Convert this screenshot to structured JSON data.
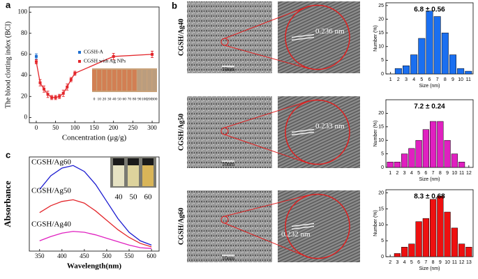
{
  "chart_data": [
    {
      "type": "line",
      "panel_label": "a",
      "ylabel": "The blood clotting index (BCI)",
      "xlabel": "Concentration (μg/g)",
      "xlim": [
        -18,
        318
      ],
      "xticks": [
        0,
        50,
        100,
        150,
        200,
        250,
        300
      ],
      "ylim": [
        -5,
        105
      ],
      "yticks": [
        0,
        20,
        40,
        60,
        80,
        100
      ],
      "legend": "center-right",
      "series": [
        {
          "name": "CGSH-A",
          "color": "#1f6fd0",
          "x": [
            0
          ],
          "values": [
            58
          ],
          "errors": [
            2.5
          ]
        },
        {
          "name": "CGSH with Ag NPs",
          "color": "#e3262b",
          "x": [
            0,
            10,
            20,
            30,
            40,
            50,
            60,
            70,
            80,
            90,
            100,
            200,
            300
          ],
          "values": [
            53,
            33,
            27,
            22,
            19,
            19,
            20,
            23,
            29,
            36,
            42,
            58,
            60
          ],
          "errors": [
            2,
            3,
            3,
            3,
            2,
            2,
            2,
            3,
            3,
            2,
            2,
            3,
            3
          ]
        }
      ],
      "inset_labels": [
        "0",
        "10",
        "20",
        "30",
        "40",
        "50",
        "60",
        "70",
        "80",
        "90",
        "100",
        "200",
        "300"
      ]
    },
    {
      "type": "line",
      "panel_label": "c",
      "ylabel": "Absorbance",
      "xlabel": "Wavelength(nm)",
      "xlim": [
        327,
        617
      ],
      "xticks": [
        350,
        400,
        450,
        500,
        550,
        600
      ],
      "ylim": [
        0,
        1.1
      ],
      "x": [
        350,
        375,
        400,
        425,
        450,
        475,
        500,
        525,
        550,
        575,
        600
      ],
      "series": [
        {
          "name": "CGSH/Ag60",
          "color": "#1a1ad0",
          "values": [
            0.72,
            0.88,
            0.97,
            1.0,
            0.93,
            0.78,
            0.58,
            0.38,
            0.22,
            0.12,
            0.07
          ]
        },
        {
          "name": "CGSH/Ag50",
          "color": "#e3262b",
          "values": [
            0.45,
            0.53,
            0.58,
            0.6,
            0.56,
            0.47,
            0.36,
            0.25,
            0.16,
            0.09,
            0.05
          ]
        },
        {
          "name": "CGSH/Ag40",
          "color": "#e020c0",
          "values": [
            0.12,
            0.17,
            0.21,
            0.23,
            0.22,
            0.19,
            0.15,
            0.11,
            0.07,
            0.04,
            0.03
          ]
        }
      ],
      "inset_labels": [
        "40",
        "50",
        "60"
      ]
    },
    {
      "type": "bar",
      "annotation": "6.8 ± 0.56",
      "xlabel": "Size (nm)",
      "ylabel": "Number (%)",
      "color": "#1a6ff0",
      "x": [
        2,
        3,
        4,
        5,
        6,
        7,
        8,
        9,
        10,
        11
      ],
      "values": [
        2,
        3,
        7,
        13,
        23,
        21,
        15,
        7,
        2,
        1
      ],
      "xlim": [
        0.4,
        11.6
      ],
      "xticks": [
        1,
        2,
        3,
        4,
        5,
        6,
        7,
        8,
        9,
        10,
        11
      ],
      "ylim": [
        0,
        26
      ],
      "yticks": [
        0,
        5,
        10,
        15,
        20,
        25
      ]
    },
    {
      "type": "bar",
      "annotation": "7.2 ± 0.24",
      "xlabel": "Size (nm)",
      "ylabel": "Number (%)",
      "color": "#e020c0",
      "x": [
        1,
        2,
        3,
        4,
        5,
        6,
        7,
        8,
        9,
        10,
        11
      ],
      "values": [
        2,
        2,
        5,
        7,
        10,
        14,
        17,
        17,
        10,
        5,
        2
      ],
      "xlim": [
        0.4,
        12.6
      ],
      "xticks": [
        1,
        2,
        3,
        4,
        5,
        6,
        7,
        8,
        9,
        10,
        11,
        12
      ],
      "ylim": [
        0,
        25
      ],
      "yticks": [
        0,
        5,
        10,
        15,
        20
      ]
    },
    {
      "type": "bar",
      "annotation": "8.3 ± 0.68",
      "xlabel": "Size (nm)",
      "ylabel": "Number (%)",
      "color": "#ee1010",
      "x": [
        3,
        4,
        5,
        6,
        7,
        8,
        9,
        10,
        11,
        12,
        13
      ],
      "values": [
        1,
        3,
        4,
        11,
        12,
        18,
        19,
        14,
        9,
        4,
        3
      ],
      "xlim": [
        1.4,
        13.6
      ],
      "xticks": [
        2,
        3,
        4,
        5,
        6,
        7,
        8,
        9,
        10,
        11,
        12,
        13
      ],
      "ylim": [
        0,
        21
      ],
      "yticks": [
        0,
        5,
        10,
        15,
        20
      ]
    }
  ],
  "panel_b": {
    "label": "b",
    "rows": [
      {
        "sample": "CGSH/Ag40",
        "scale": "10nm",
        "spacing": "0.236 nm"
      },
      {
        "sample": "CGSH/Ag50",
        "scale": "10nm",
        "spacing": "0.233 nm"
      },
      {
        "sample": "CGSH/Ag60",
        "scale": "10nm",
        "spacing": "0.232 nm"
      }
    ]
  }
}
